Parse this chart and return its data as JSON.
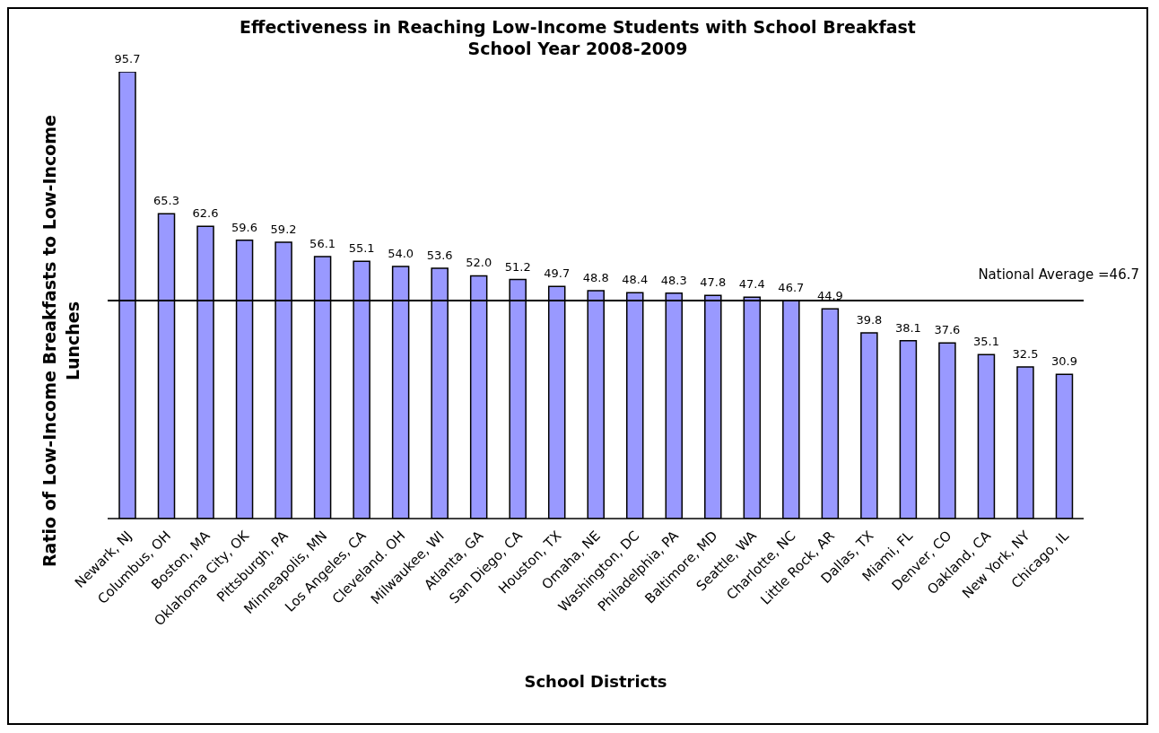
{
  "chart_data": {
    "type": "bar",
    "title": "Effectiveness in Reaching Low-Income Students with School Breakfast",
    "subtitle": "School Year 2008-2009",
    "xlabel": "School Districts",
    "ylabel": "Ratio of Low-Income Breakfasts to Low-Income Lunches",
    "categories": [
      "Newark, NJ",
      "Columbus, OH",
      "Boston, MA",
      "Oklahoma City, OK",
      "Pittsburgh, PA",
      "Minneapolis, MN",
      "Los Angeles, CA",
      "Cleveland. OH",
      "Milwaukee, WI",
      "Atlanta, GA",
      "San Diego, CA",
      "Houston, TX",
      "Omaha, NE",
      "Washington, DC",
      "Philadelphia, PA",
      "Baltimore, MD",
      "Seattle, WA",
      "Charlotte, NC",
      "Little Rock, AR",
      "Dallas, TX",
      "Miami, FL",
      "Denver, CO",
      "Oakland, CA",
      "New York, NY",
      "Chicago, IL"
    ],
    "values": [
      95.7,
      65.3,
      62.6,
      59.6,
      59.2,
      56.1,
      55.1,
      54.0,
      53.6,
      52.0,
      51.2,
      49.7,
      48.8,
      48.4,
      48.3,
      47.8,
      47.4,
      46.7,
      44.9,
      39.8,
      38.1,
      37.6,
      35.1,
      32.5,
      30.9
    ],
    "value_labels": [
      "95.7",
      "65.3",
      "62.6",
      "59.6",
      "59.2",
      "56.1",
      "55.1",
      "54.0",
      "53.6",
      "52.0",
      "51.2",
      "49.7",
      "48.8",
      "48.4",
      "48.3",
      "47.8",
      "47.4",
      "46.7",
      "44.9",
      "39.8",
      "38.1",
      "37.6",
      "35.1",
      "32.5",
      "30.9"
    ],
    "color": "#9999ff",
    "ref_lines": [
      {
        "axis": "y",
        "value": 46.7,
        "label": "National Average =46.7",
        "color": "#000000"
      }
    ]
  }
}
